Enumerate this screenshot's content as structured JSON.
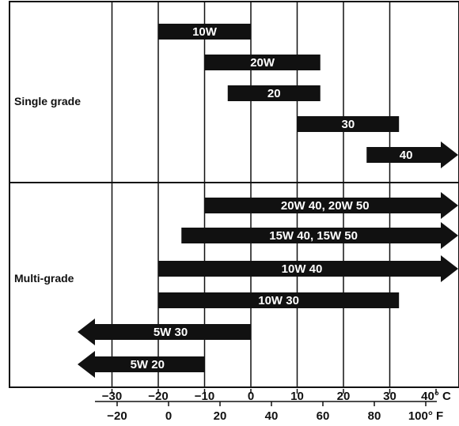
{
  "chart_data": {
    "type": "bar",
    "orientation": "horizontal-range",
    "groups": [
      {
        "label": "Single grade",
        "rows": 5
      },
      {
        "label": "Multi-grade",
        "rows": 6
      }
    ],
    "units": {
      "primary": "°C",
      "secondary": "°F"
    },
    "xlim_c": [
      -40,
      40
    ],
    "ticks_c": [
      {
        "value": -30,
        "label": "−30"
      },
      {
        "value": -20,
        "label": "−20"
      },
      {
        "value": -10,
        "label": "−10"
      },
      {
        "value": 0,
        "label": "0"
      },
      {
        "value": 10,
        "label": "10"
      },
      {
        "value": 20,
        "label": "20"
      },
      {
        "value": 30,
        "label": "30"
      },
      {
        "value": 40,
        "label": "40° C"
      }
    ],
    "ticks_f": [
      {
        "value": -20,
        "label": "−20"
      },
      {
        "value": 0,
        "label": "0"
      },
      {
        "value": 20,
        "label": "20"
      },
      {
        "value": 40,
        "label": "40"
      },
      {
        "value": 60,
        "label": "60"
      },
      {
        "value": 80,
        "label": "80"
      },
      {
        "value": 100,
        "label": "100° F"
      }
    ],
    "series": [
      {
        "label": "10W",
        "group": 0,
        "from": -20,
        "to": 0,
        "arrow_left": false,
        "arrow_right": false
      },
      {
        "label": "20W",
        "group": 0,
        "from": -10,
        "to": 15,
        "arrow_left": false,
        "arrow_right": false
      },
      {
        "label": "20",
        "group": 0,
        "from": -5,
        "to": 15,
        "arrow_left": false,
        "arrow_right": false
      },
      {
        "label": "30",
        "group": 0,
        "from": 10,
        "to": 32,
        "arrow_left": false,
        "arrow_right": false
      },
      {
        "label": "40",
        "group": 0,
        "from": 25,
        "to": 40,
        "arrow_left": false,
        "arrow_right": true
      },
      {
        "label": "20W 40, 20W 50",
        "group": 1,
        "from": -10,
        "to": 40,
        "arrow_left": false,
        "arrow_right": true
      },
      {
        "label": "15W 40, 15W 50",
        "group": 1,
        "from": -15,
        "to": 40,
        "arrow_left": false,
        "arrow_right": true
      },
      {
        "label": "10W 40",
        "group": 1,
        "from": -20,
        "to": 40,
        "arrow_left": false,
        "arrow_right": true
      },
      {
        "label": "10W 30",
        "group": 1,
        "from": -20,
        "to": 32,
        "arrow_left": false,
        "arrow_right": false
      },
      {
        "label": "5W 30",
        "group": 1,
        "from": -40,
        "to": 0,
        "arrow_left": true,
        "arrow_right": false
      },
      {
        "label": "5W 20",
        "group": 1,
        "from": -40,
        "to": -10,
        "arrow_left": true,
        "arrow_right": false
      }
    ],
    "colors": {
      "bar": "#111111",
      "bar_text": "#ffffff",
      "grid": "#111111",
      "background": "#ffffff"
    }
  }
}
